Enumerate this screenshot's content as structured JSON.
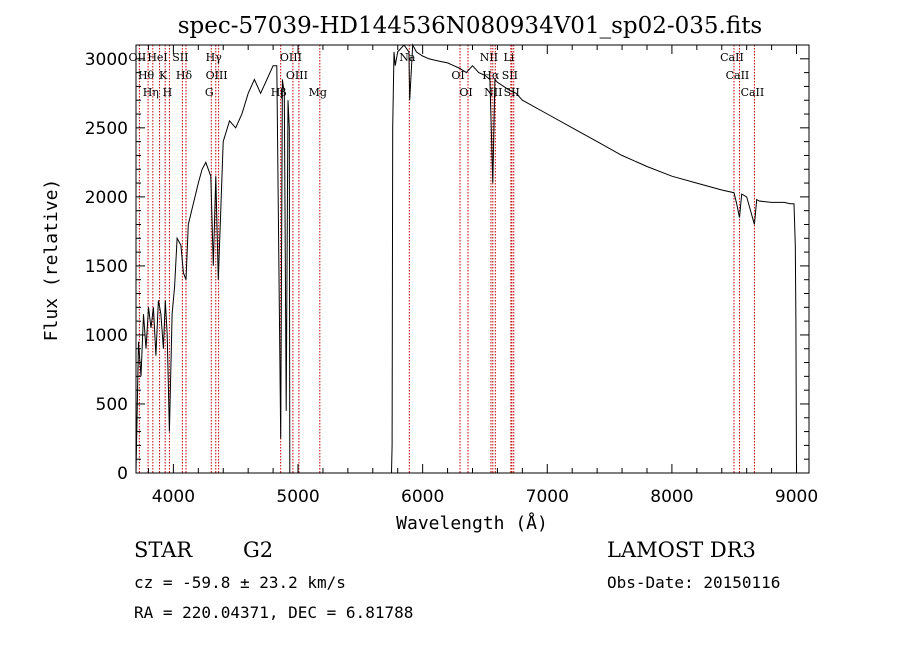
{
  "chart_data": {
    "type": "line",
    "title": "spec-57039-HD144536N080934V01_sp02-035.fits",
    "xlabel": "Wavelength (Å)",
    "ylabel": "Flux (relative)",
    "xlim": [
      3700,
      9100
    ],
    "ylim": [
      0,
      3100
    ],
    "xticks": [
      4000,
      5000,
      6000,
      7000,
      8000,
      9000
    ],
    "yticks": [
      0,
      500,
      1000,
      1500,
      2000,
      2500,
      3000
    ],
    "grid": false,
    "series": [
      {
        "name": "spectrum",
        "x": [
          3700,
          3720,
          3740,
          3760,
          3780,
          3800,
          3820,
          3840,
          3860,
          3880,
          3900,
          3920,
          3935,
          3950,
          3968,
          3990,
          4010,
          4030,
          4060,
          4080,
          4101,
          4120,
          4160,
          4200,
          4230,
          4260,
          4300,
          4320,
          4340,
          4360,
          4400,
          4450,
          4500,
          4550,
          4600,
          4650,
          4700,
          4750,
          4800,
          4830,
          4861,
          4875,
          4890,
          4905,
          4920,
          4930,
          4934,
          5750,
          5755,
          5760,
          5770,
          5780,
          5800,
          5850,
          5890,
          5896,
          5920,
          5950,
          6000,
          6050,
          6100,
          6150,
          6200,
          6250,
          6300,
          6350,
          6400,
          6450,
          6500,
          6540,
          6563,
          6580,
          6600,
          6650,
          6700,
          6750,
          6800,
          7000,
          7200,
          7400,
          7600,
          7800,
          8000,
          8200,
          8400,
          8498,
          8520,
          8542,
          8560,
          8600,
          8662,
          8680,
          8700,
          8800,
          8900,
          8950,
          8980,
          8990,
          8995,
          9000
        ],
        "y": [
          0,
          950,
          700,
          1150,
          900,
          1200,
          1050,
          1200,
          850,
          1250,
          1150,
          900,
          1250,
          1000,
          300,
          1150,
          1350,
          1700,
          1650,
          1450,
          1400,
          1800,
          1950,
          2100,
          2200,
          2250,
          2150,
          1500,
          2150,
          1400,
          2400,
          2550,
          2500,
          2600,
          2750,
          2850,
          2750,
          2850,
          2950,
          2950,
          250,
          2850,
          2750,
          450,
          2700,
          2500,
          0,
          0,
          200,
          2500,
          3050,
          2950,
          3050,
          3100,
          3050,
          2700,
          3100,
          3050,
          3020,
          3000,
          2990,
          2980,
          2970,
          2950,
          2930,
          2900,
          2950,
          2900,
          2880,
          2850,
          2100,
          2850,
          2830,
          2800,
          2770,
          2750,
          2700,
          2600,
          2500,
          2400,
          2300,
          2220,
          2150,
          2100,
          2050,
          2030,
          1950,
          1850,
          2020,
          2000,
          1800,
          1980,
          1970,
          1960,
          1960,
          1950,
          1950,
          1650,
          1100,
          0
        ]
      }
    ],
    "lines": [
      {
        "label": "OII",
        "x": 3727
      },
      {
        "label": "Hθ",
        "x": 3797
      },
      {
        "label": "Hη",
        "x": 3835
      },
      {
        "label": "HeI",
        "x": 3889
      },
      {
        "label": "K",
        "x": 3934
      },
      {
        "label": "H",
        "x": 3968
      },
      {
        "label": "SII",
        "x": 4072
      },
      {
        "label": "Hδ",
        "x": 4101
      },
      {
        "label": "G",
        "x": 4304
      },
      {
        "label": "Hγ",
        "x": 4340
      },
      {
        "label": "OIII",
        "x": 4363
      },
      {
        "label": "Hβ",
        "x": 4861
      },
      {
        "label": "OIII",
        "x": 4959
      },
      {
        "label": "OIII",
        "x": 5007
      },
      {
        "label": "Mg",
        "x": 5175
      },
      {
        "label": "Na",
        "x": 5893
      },
      {
        "label": "OI",
        "x": 6300
      },
      {
        "label": "OI",
        "x": 6364
      },
      {
        "label": "NII",
        "x": 6548
      },
      {
        "label": "Hα",
        "x": 6563
      },
      {
        "label": "NII",
        "x": 6583
      },
      {
        "label": "Li",
        "x": 6708
      },
      {
        "label": "SII",
        "x": 6716
      },
      {
        "label": "SII",
        "x": 6731
      },
      {
        "label": "CaII",
        "x": 8498
      },
      {
        "label": "CaII",
        "x": 8542
      },
      {
        "label": "CaII",
        "x": 8662
      }
    ],
    "line_label_texts": [
      "OII",
      "Hθ",
      "Hη",
      "HeI",
      "K",
      "H",
      "SII",
      "Hδ",
      "G",
      "Hγ",
      "OIII",
      "Hβ",
      "OIII",
      "OIII",
      "Mg",
      "Na",
      "OI",
      "OI",
      "NII",
      "Hα",
      "NII",
      "Li",
      "SII",
      "SII",
      "CaII",
      "CaII",
      "CaII"
    ]
  },
  "info": {
    "object_class": "STAR",
    "subclass": "G2",
    "survey": "LAMOST DR3",
    "redshift": "cz = -59.8 ± 23.2 km/s",
    "obs_date": "Obs-Date: 20150116",
    "coords": "RA = 220.04371, DEC =   6.81788"
  },
  "colors": {
    "spectrum": "#000000",
    "line_markers": "#c00000",
    "axis": "#000000"
  }
}
